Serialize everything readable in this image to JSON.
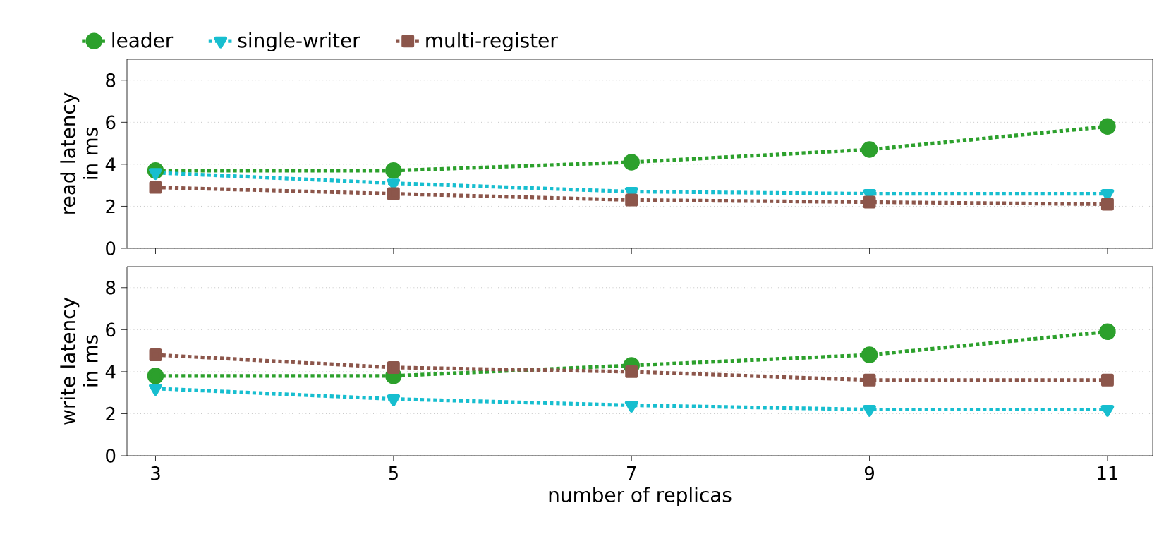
{
  "chart_data": [
    {
      "type": "line",
      "ylabel": "read latency in ms",
      "x": [
        3,
        5,
        7,
        9,
        11
      ],
      "xlim": [
        2.76,
        11.38
      ],
      "xticks": [
        3,
        5,
        7,
        9,
        11
      ],
      "ylim": [
        0,
        9
      ],
      "yticks": [
        0,
        2,
        4,
        6,
        8
      ],
      "grid": "y",
      "legend": "top",
      "tick_labels": "y",
      "line_style": "dotted",
      "series": [
        {
          "name": "leader",
          "color": "#2ca02c",
          "marker": "circle",
          "values": [
            3.7,
            3.7,
            4.1,
            4.7,
            5.8
          ]
        },
        {
          "name": "single-writer",
          "color": "#17becf",
          "marker": "triangle",
          "values": [
            3.6,
            3.1,
            2.7,
            2.6,
            2.6
          ]
        },
        {
          "name": "multi-register",
          "color": "#8c564b",
          "marker": "square",
          "values": [
            2.9,
            2.6,
            2.3,
            2.2,
            2.1
          ]
        }
      ]
    },
    {
      "type": "line",
      "ylabel": "write latency in ms",
      "xlabel": "number of replicas",
      "x": [
        3,
        5,
        7,
        9,
        11
      ],
      "xlim": [
        2.76,
        11.38
      ],
      "xticks": [
        3,
        5,
        7,
        9,
        11
      ],
      "ylim": [
        0,
        9
      ],
      "yticks": [
        0,
        2,
        4,
        6,
        8
      ],
      "grid": "y",
      "line_style": "dotted",
      "series": [
        {
          "color": "#2ca02c",
          "marker": "circle",
          "values": [
            3.8,
            3.8,
            4.3,
            4.8,
            5.9
          ]
        },
        {
          "color": "#17becf",
          "marker": "triangle",
          "values": [
            3.2,
            2.7,
            2.4,
            2.2,
            2.2
          ]
        },
        {
          "color": "#8c564b",
          "marker": "square",
          "values": [
            4.8,
            4.2,
            4.0,
            3.6,
            3.6
          ]
        }
      ]
    }
  ]
}
